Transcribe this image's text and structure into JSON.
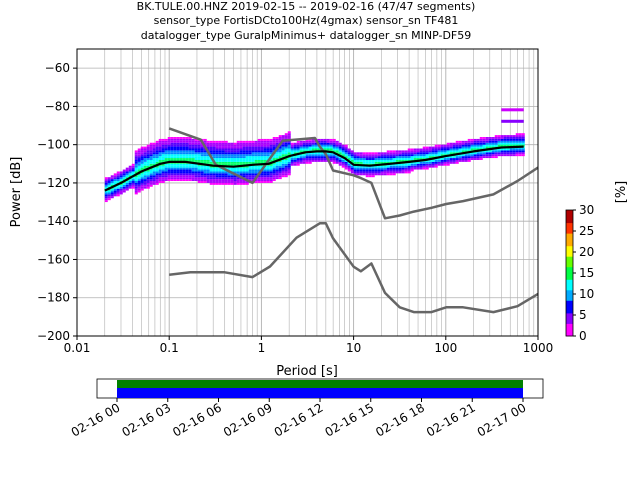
{
  "title_lines": [
    "BK.TULE.00.HNZ   2019-02-15 -- 2019-02-16  (47/47 segments)",
    "sensor_type FortisDCto100Hz(4gmax) sensor_sn TF481",
    "datalogger_type GuralpMinimus+ datalogger_sn MINP-DF59"
  ],
  "colorbar": {
    "label": "[%]",
    "ticks": [
      "0",
      "5",
      "10",
      "15",
      "20",
      "25",
      "30"
    ],
    "range": [
      0,
      30
    ],
    "colors": [
      "#ffffff",
      "#ff00ff",
      "#8800ff",
      "#0000ff",
      "#00aaff",
      "#00ffff",
      "#00ff44",
      "#66ff00",
      "#ffff00",
      "#ffaa00",
      "#ff3300",
      "#b00000"
    ]
  },
  "timeline": {
    "ticks": [
      "02-16 00",
      "02-16 03",
      "02-16 06",
      "02-16 09",
      "02-16 12",
      "02-16 15",
      "02-16 18",
      "02-16 21",
      "02-17 00"
    ],
    "coverage_hours": [
      0,
      24
    ],
    "colors": {
      "data": "#0000ff",
      "gaps": "#008000"
    }
  },
  "chart_data": {
    "type": "heatmap",
    "title": "BK.TULE.00.HNZ   2019-02-15 -- 2019-02-16  (47/47 segments)",
    "xlabel": "Period [s]",
    "ylabel": "Power [dB]",
    "xscale": "log",
    "xlim": [
      0.01,
      1000
    ],
    "ylim": [
      -200,
      -50
    ],
    "xticks": [
      "0.01",
      "0.1",
      "1",
      "10",
      "100",
      "1000"
    ],
    "yticks": [
      "−60",
      "−80",
      "−100",
      "−120",
      "−140",
      "−160",
      "−180",
      "−200"
    ],
    "grid": true,
    "series": [
      {
        "role": "nhnm",
        "x": [
          0.1,
          0.22,
          0.32,
          0.8,
          1.7,
          3.8,
          4.3,
          5.0,
          6.0,
          10.0,
          12.0,
          15.6,
          21.9,
          31.6,
          45.0,
          70.0,
          101.0,
          154.0,
          328.0,
          600.0,
          1000.0
        ],
        "y": [
          -91.5,
          -97.4,
          -110.5,
          -120.0,
          -98.0,
          -96.5,
          -101.0,
          -105.0,
          -113.5,
          -116.0,
          -117.5,
          -120.0,
          -138.5,
          -137.0,
          -135.0,
          -133.0,
          -131.0,
          -129.5,
          -126.0,
          -119.0,
          -112.0
        ]
      },
      {
        "role": "nlnm",
        "x": [
          0.1,
          0.17,
          0.4,
          0.8,
          1.24,
          2.4,
          4.3,
          5.0,
          6.0,
          10.0,
          12.0,
          15.6,
          21.9,
          31.6,
          45.0,
          70.0,
          101.0,
          154.0,
          328.0,
          600.0,
          1000.0
        ],
        "y": [
          -168.0,
          -166.7,
          -166.7,
          -169.2,
          -163.7,
          -148.6,
          -141.1,
          -141.1,
          -149.0,
          -163.8,
          -166.2,
          -162.1,
          -177.5,
          -185.0,
          -187.5,
          -187.5,
          -185.0,
          -185.0,
          -187.5,
          -184.4,
          -178.0
        ]
      },
      {
        "role": "mode",
        "x": [
          0.02,
          0.03,
          0.05,
          0.08,
          0.1,
          0.15,
          0.3,
          0.5,
          0.8,
          1.2,
          2.0,
          3.0,
          4.0,
          5.0,
          6.0,
          8.0,
          10.0,
          15.0,
          25.0,
          40.0,
          60.0,
          100.0,
          200.0,
          400.0,
          700.0
        ],
        "y": [
          -124.0,
          -120.0,
          -114.0,
          -110.0,
          -109.0,
          -109.0,
          -111.0,
          -111.5,
          -110.5,
          -110.0,
          -106.0,
          -104.0,
          -103.5,
          -103.5,
          -104.0,
          -107.0,
          -110.5,
          -111.0,
          -110.0,
          -109.0,
          -108.0,
          -106.0,
          -103.5,
          -101.5,
          -101.0
        ]
      }
    ]
  }
}
